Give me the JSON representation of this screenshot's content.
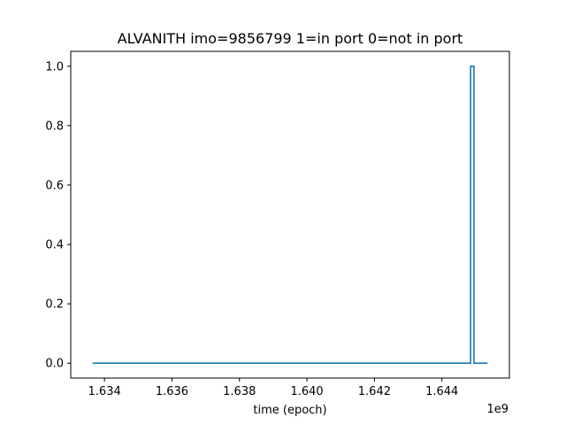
{
  "chart_data": {
    "type": "line",
    "title": "ALVANITH imo=9856799 1=in port 0=not in port",
    "xlabel": "time (epoch)",
    "ylabel": "",
    "x_offset_label": "1e9",
    "x_scale": 1000000000,
    "xlim": [
      1.633,
      1.646
    ],
    "ylim": [
      -0.05,
      1.05
    ],
    "x_ticks": [
      1.634,
      1.636,
      1.638,
      1.64,
      1.642,
      1.644
    ],
    "x_tick_labels": [
      "1.634",
      "1.636",
      "1.638",
      "1.640",
      "1.642",
      "1.644"
    ],
    "y_ticks": [
      0.0,
      0.2,
      0.4,
      0.6,
      0.8,
      1.0
    ],
    "y_tick_labels": [
      "0.0",
      "0.2",
      "0.4",
      "0.6",
      "0.8",
      "1.0"
    ],
    "grid": false,
    "series": [
      {
        "color": "#1f77b4",
        "x": [
          1.63365,
          1.64485,
          1.64485,
          1.64495,
          1.64495,
          1.64535
        ],
        "y": [
          0,
          0,
          1,
          1,
          0,
          0
        ]
      }
    ]
  }
}
